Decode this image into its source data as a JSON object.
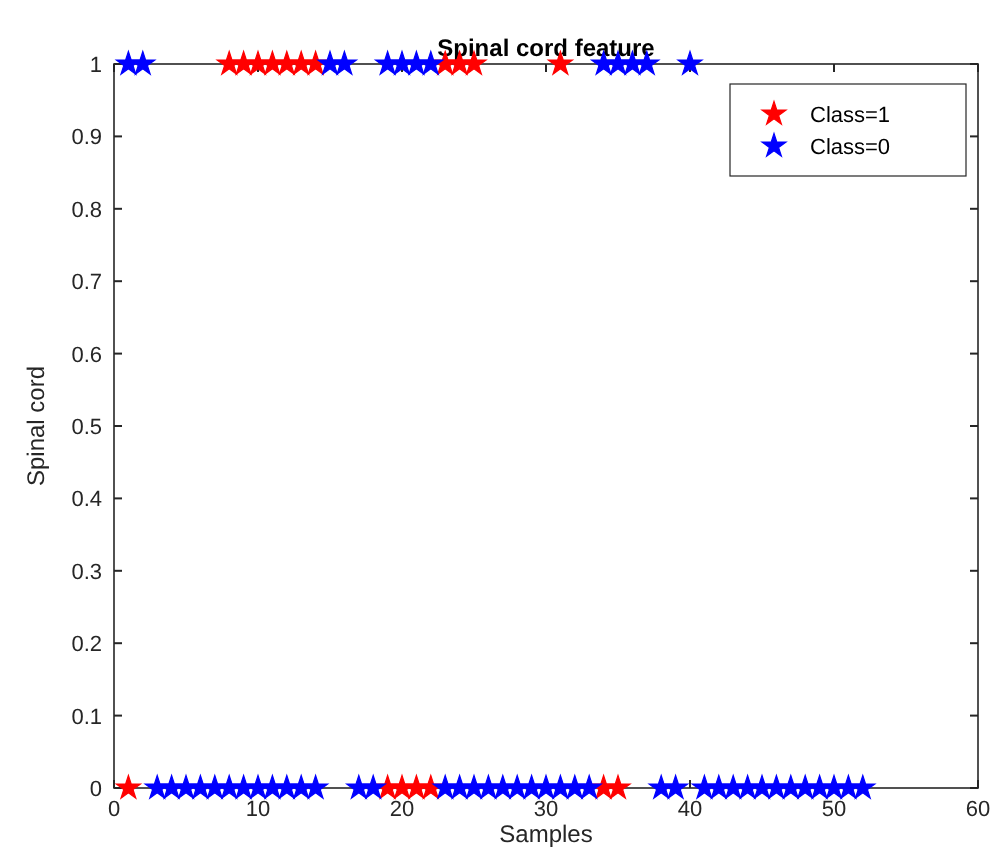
{
  "chart_data": {
    "type": "scatter",
    "title": "Spinal cord feature",
    "xlabel": "Samples",
    "ylabel": "Spinal cord",
    "xlim": [
      0,
      60
    ],
    "xticks": [
      0,
      10,
      20,
      30,
      40,
      50,
      60
    ],
    "ylim": [
      0,
      1
    ],
    "yticks": [
      0,
      0.1,
      0.2,
      0.3,
      0.4,
      0.5,
      0.6,
      0.7,
      0.8,
      0.9,
      1
    ],
    "marker": "star",
    "legend": "top right",
    "grid": false,
    "series": [
      {
        "name": "Class=1",
        "color": "#ff0000",
        "x": [
          8,
          9,
          10,
          11,
          12,
          13,
          14,
          23,
          24,
          25,
          31,
          1,
          19,
          20,
          21,
          22,
          34,
          35
        ],
        "values": [
          1,
          1,
          1,
          1,
          1,
          1,
          1,
          1,
          1,
          1,
          1,
          0,
          0,
          0,
          0,
          0,
          0,
          0
        ]
      },
      {
        "name": "Class=0",
        "color": "#0000ff",
        "x": [
          1,
          2,
          15,
          16,
          19,
          20,
          21,
          22,
          34,
          35,
          36,
          37,
          40,
          3,
          4,
          5,
          6,
          7,
          8,
          9,
          10,
          11,
          12,
          13,
          14,
          17,
          18,
          23,
          24,
          25,
          26,
          27,
          28,
          29,
          30,
          31,
          32,
          33,
          38,
          39,
          41,
          42,
          43,
          44,
          45,
          46,
          47,
          48,
          49,
          50,
          51,
          52
        ],
        "values": [
          1,
          1,
          1,
          1,
          1,
          1,
          1,
          1,
          1,
          1,
          1,
          1,
          1,
          0,
          0,
          0,
          0,
          0,
          0,
          0,
          0,
          0,
          0,
          0,
          0,
          0,
          0,
          0,
          0,
          0,
          0,
          0,
          0,
          0,
          0,
          0,
          0,
          0,
          0,
          0,
          0,
          0,
          0,
          0,
          0,
          0,
          0,
          0,
          0,
          0,
          0,
          0
        ]
      }
    ]
  }
}
